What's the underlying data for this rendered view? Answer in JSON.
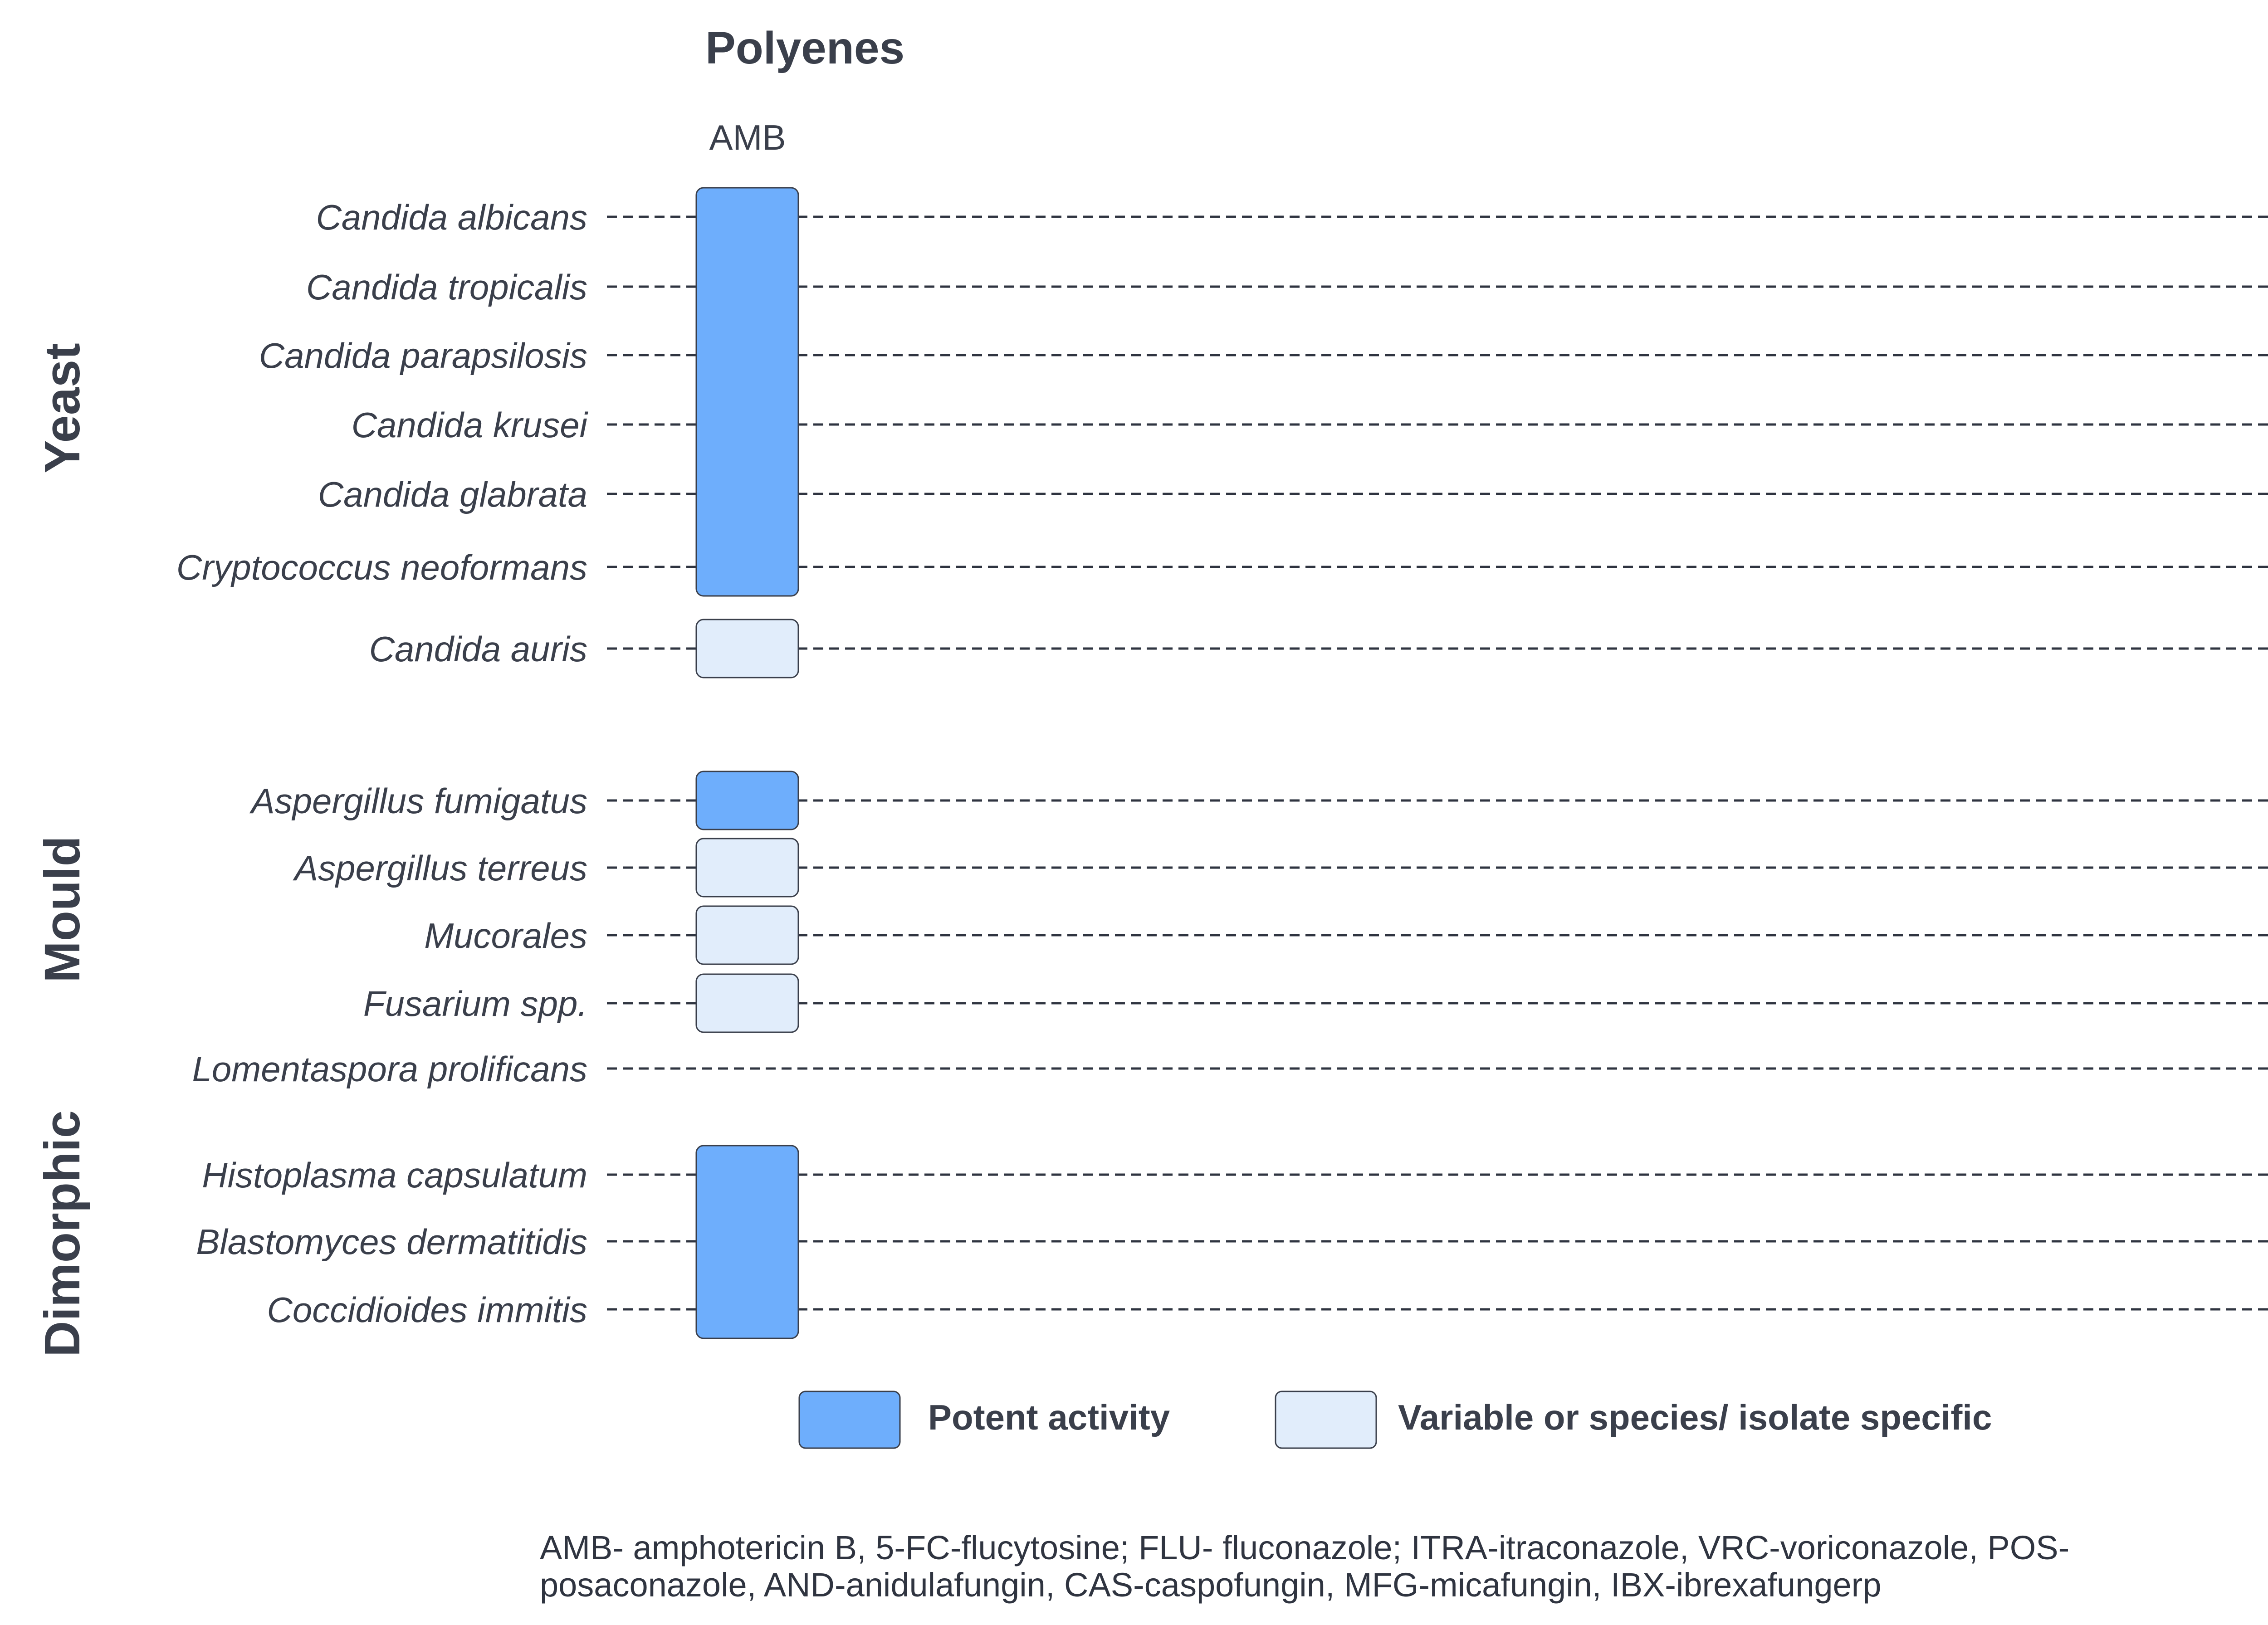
{
  "colors": {
    "potent": "#6eaefc",
    "variable": "#e1edfb",
    "border": "#3a3f4b"
  },
  "drug_class": {
    "title": "Polyenes",
    "drug": "AMB"
  },
  "groups": [
    {
      "label": "Yeast"
    },
    {
      "label": "Mould"
    },
    {
      "label": "Dimorphic"
    }
  ],
  "organisms": [
    "Candida albicans",
    "Candida tropicalis",
    "Candida parapsilosis",
    "Candida krusei",
    "Candida glabrata",
    "Cryptococcus neoformans",
    "Candida auris",
    "Aspergillus fumigatus",
    "Aspergillus terreus",
    "Mucorales",
    "Fusarium spp.",
    "Lomentaspora prolificans",
    "Histoplasma capsulatum",
    "Blastomyces dermatitidis",
    "Coccidioides immitis"
  ],
  "activity_blocks": [
    {
      "from": "Candida albicans",
      "to": "Cryptococcus neoformans",
      "level": "potent"
    },
    {
      "from": "Candida auris",
      "to": "Candida auris",
      "level": "variable"
    },
    {
      "from": "Aspergillus fumigatus",
      "to": "Aspergillus fumigatus",
      "level": "potent"
    },
    {
      "from": "Aspergillus terreus",
      "to": "Aspergillus terreus",
      "level": "variable"
    },
    {
      "from": "Mucorales",
      "to": "Mucorales",
      "level": "variable"
    },
    {
      "from": "Fusarium spp.",
      "to": "Fusarium spp.",
      "level": "variable"
    },
    {
      "from": "Histoplasma capsulatum",
      "to": "Coccidioides immitis",
      "level": "potent"
    }
  ],
  "legend": {
    "potent": "Potent activity",
    "variable": "Variable or species/ isolate specific"
  },
  "footnote": {
    "line1": "AMB- amphotericin B, 5-FC-flucytosine; FLU- fluconazole; ITRA-itraconazole, VRC-voriconazole, POS-",
    "line2": "posaconazole, AND-anidulafungin, CAS-caspofungin, MFG-micafungin, IBX-ibrexafungerp"
  }
}
